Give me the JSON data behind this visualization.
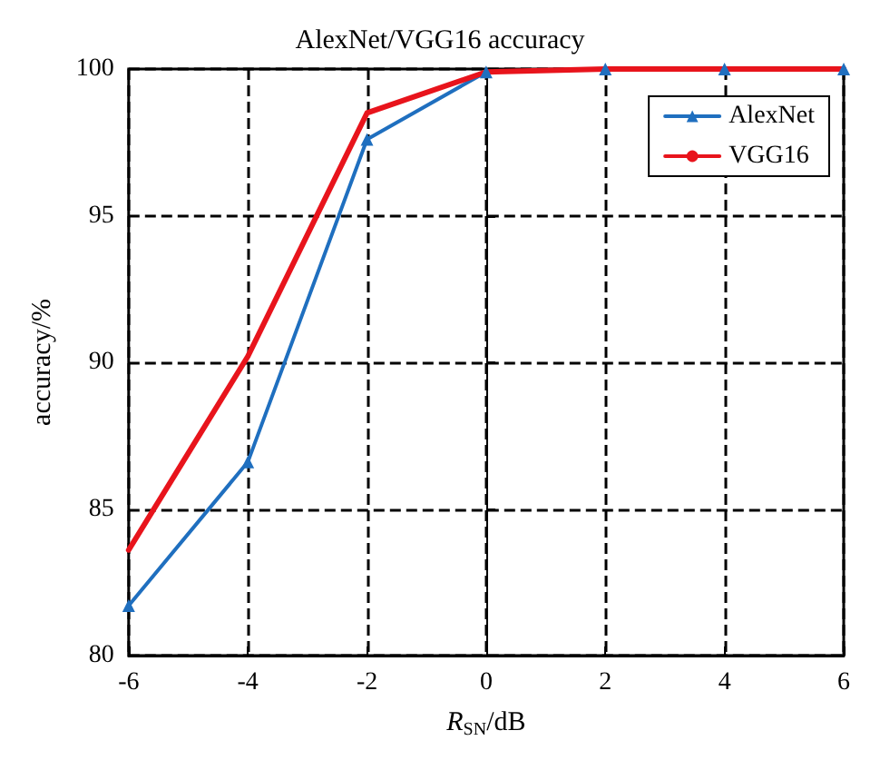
{
  "chart_data": {
    "type": "line",
    "title": "AlexNet/VGG16 accuracy",
    "xlabel": "R$_{SN}$/dB",
    "ylabel": "accuracy/%",
    "x": [
      -6,
      -4,
      -2,
      0,
      2,
      4,
      6
    ],
    "series": [
      {
        "name": "AlexNet",
        "color": "#1f6fbf",
        "values": [
          81.7,
          86.6,
          97.6,
          99.9,
          100,
          100,
          100
        ],
        "marker": "triangle"
      },
      {
        "name": "VGG16",
        "color": "#e8141c",
        "values": [
          83.6,
          90.2,
          98.5,
          99.9,
          100,
          100,
          100
        ],
        "marker": "none"
      }
    ],
    "xlim": [
      -6,
      6
    ],
    "xticks": [
      -6,
      -4,
      -2,
      0,
      2,
      4,
      6
    ],
    "ylim": [
      80,
      100
    ],
    "yticks": [
      80,
      85,
      90,
      95,
      100
    ],
    "grid": true,
    "legend": "top right",
    "line_style": "solid"
  }
}
